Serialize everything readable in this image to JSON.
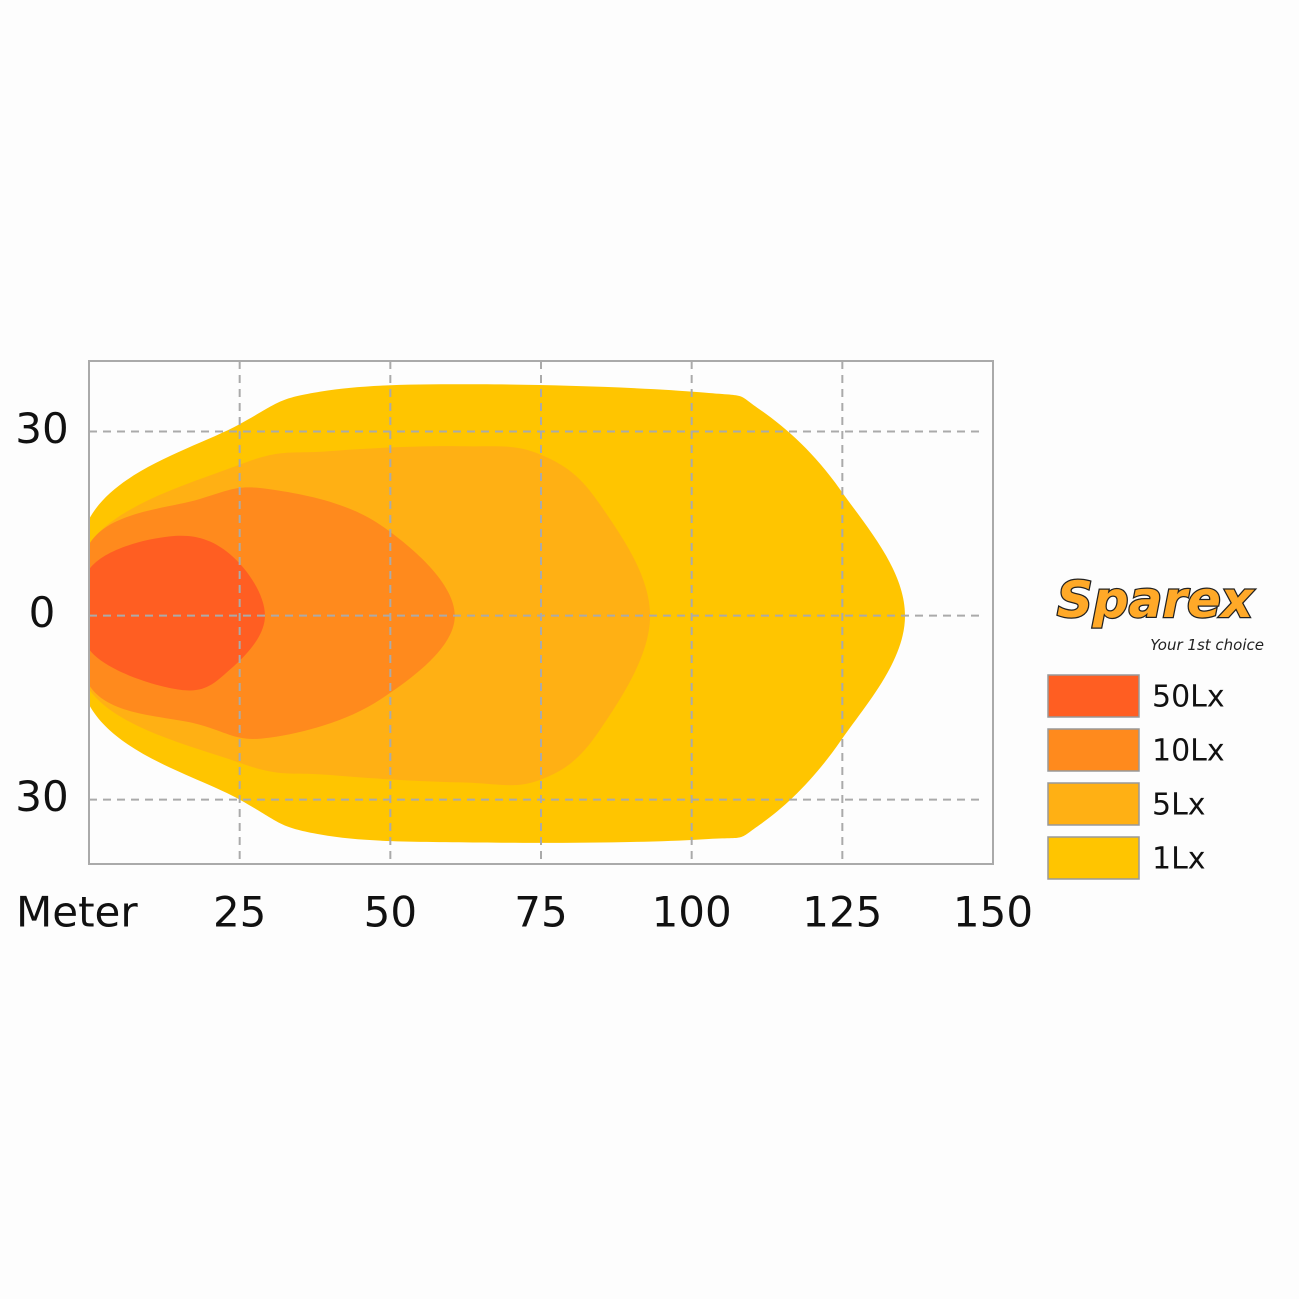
{
  "chart_data": {
    "type": "area",
    "x_label": "Meter",
    "xlim": [
      0,
      150
    ],
    "xticks": [
      25,
      50,
      75,
      100,
      125,
      150
    ],
    "ylim": [
      -40.5,
      41.5
    ],
    "yticks": [
      {
        "value": -30,
        "label": "30"
      },
      0,
      30
    ],
    "grid": true,
    "legend": "right",
    "series": [
      {
        "name": "50Lx",
        "color": "#ff5e22",
        "x": [
          0,
          13.4,
          23.4,
          29.2,
          23.4,
          15.1,
          0
        ],
        "values": [
          7.5,
          12.9,
          10,
          0,
          -8.8,
          -12.1,
          -5.5
        ]
      },
      {
        "name": "10Lx",
        "color": "#ff8a1d",
        "x": [
          0,
          18.4,
          30,
          48.3,
          60.7,
          48.3,
          30,
          18.4,
          0
        ],
        "values": [
          11.6,
          19,
          20.6,
          14.8,
          0,
          -13.7,
          -19.9,
          -17.8,
          -11.3
        ]
      },
      {
        "name": "5Lx",
        "color": "#ffb014",
        "x": [
          0,
          25,
          40,
          61.6,
          74.8,
          84.8,
          93.1,
          84.8,
          74.8,
          61.6,
          40,
          25,
          0
        ],
        "values": [
          11.6,
          24.6,
          26.8,
          27.6,
          26.3,
          18.1,
          0,
          -18.6,
          -26.8,
          -27.2,
          -26,
          -24,
          -12
        ]
      },
      {
        "name": "1Lx",
        "color": "#ffc500",
        "x": [
          0,
          25,
          38.4,
          64.9,
          101.4,
          111.3,
          124.6,
          135.4,
          124.6,
          111.3,
          101.4,
          64.9,
          38.4,
          25,
          0
        ],
        "values": [
          15.7,
          31.2,
          36.5,
          37.7,
          36.4,
          33.6,
          20.6,
          0,
          -20.6,
          -34.1,
          -36.5,
          -37,
          -35.7,
          -30,
          -14.5
        ]
      }
    ]
  },
  "logo": {
    "name": "Sparex",
    "tagline": "Your 1st choice"
  }
}
